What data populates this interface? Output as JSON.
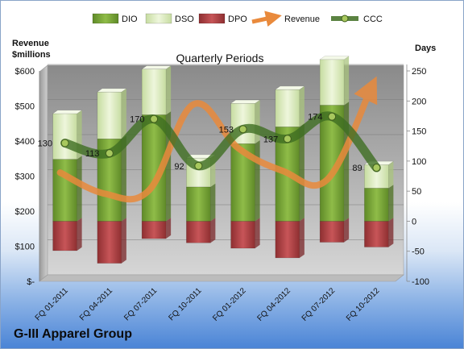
{
  "chart_data": {
    "type": "bar",
    "title": "Quarterly Periods",
    "company": "G-III Apparel Group",
    "y_left_label": [
      "Revenue",
      "$millions"
    ],
    "y_right_label": "Days",
    "y_left_ticks": [
      "$-",
      "$100",
      "$200",
      "$300",
      "$400",
      "$500",
      "$600"
    ],
    "y_left_lim": [
      0,
      600
    ],
    "y_right_ticks": [
      "-100",
      "-50",
      "0",
      "50",
      "100",
      "150",
      "200",
      "250"
    ],
    "y_right_lim": [
      -100,
      250
    ],
    "categories": [
      "FQ 01-2011",
      "FQ 04-2011",
      "FQ 07-2011",
      "FQ 10-2011",
      "FQ 01-2012",
      "FQ 04-2012",
      "FQ 07-2012",
      "FQ 10-2012"
    ],
    "series": [
      {
        "name": "DIO",
        "color": "#7aa33a",
        "values": [
          103,
          137,
          177,
          57,
          129,
          157,
          193,
          55
        ]
      },
      {
        "name": "DSO",
        "color": "#d8e8b8",
        "values": [
          76,
          78,
          76,
          48,
          67,
          62,
          76,
          39
        ]
      },
      {
        "name": "DPO",
        "color": "#b5484a",
        "values": [
          -49,
          -70,
          -29,
          -36,
          -45,
          -61,
          -35,
          -43
        ]
      },
      {
        "name": "Revenue",
        "color": "#e98a3c",
        "values": [
          310,
          250,
          260,
          505,
          380,
          315,
          290,
          555
        ]
      },
      {
        "name": "CCC",
        "color": "#3f6e22",
        "values": [
          130,
          113,
          170,
          92,
          153,
          137,
          174,
          89
        ]
      }
    ],
    "ccc_labels": [
      "130",
      "113",
      "170",
      "92",
      "153",
      "137",
      "174",
      "89"
    ],
    "legend_position": "top"
  }
}
